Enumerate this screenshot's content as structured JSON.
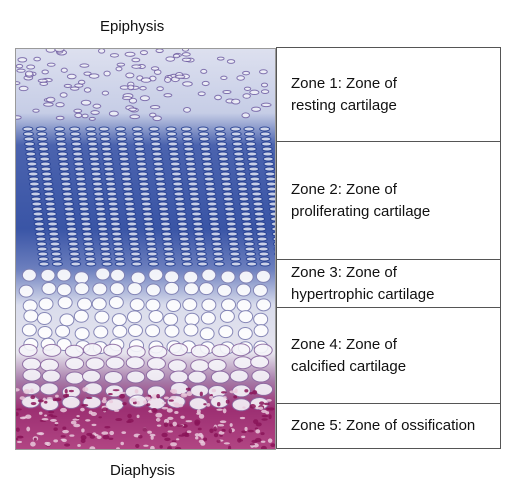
{
  "labels": {
    "top": "Epiphysis",
    "bottom": "Diaphysis"
  },
  "zones": [
    {
      "text": "Zone 1: Zone of\nresting cartilage"
    },
    {
      "text": "Zone 2: Zone of\nproliferating cartilage"
    },
    {
      "text": "Zone 3: Zone of\nhypertrophic cartilage"
    },
    {
      "text": "Zone 4: Zone of\ncalcified cartilage"
    },
    {
      "text": "Zone 5: Zone of ossification"
    }
  ],
  "colors": {
    "stain_blue": "#2f4fa0",
    "stain_light": "#e8eaf4",
    "stain_magenta": "#b0246e",
    "border": "#555555"
  }
}
